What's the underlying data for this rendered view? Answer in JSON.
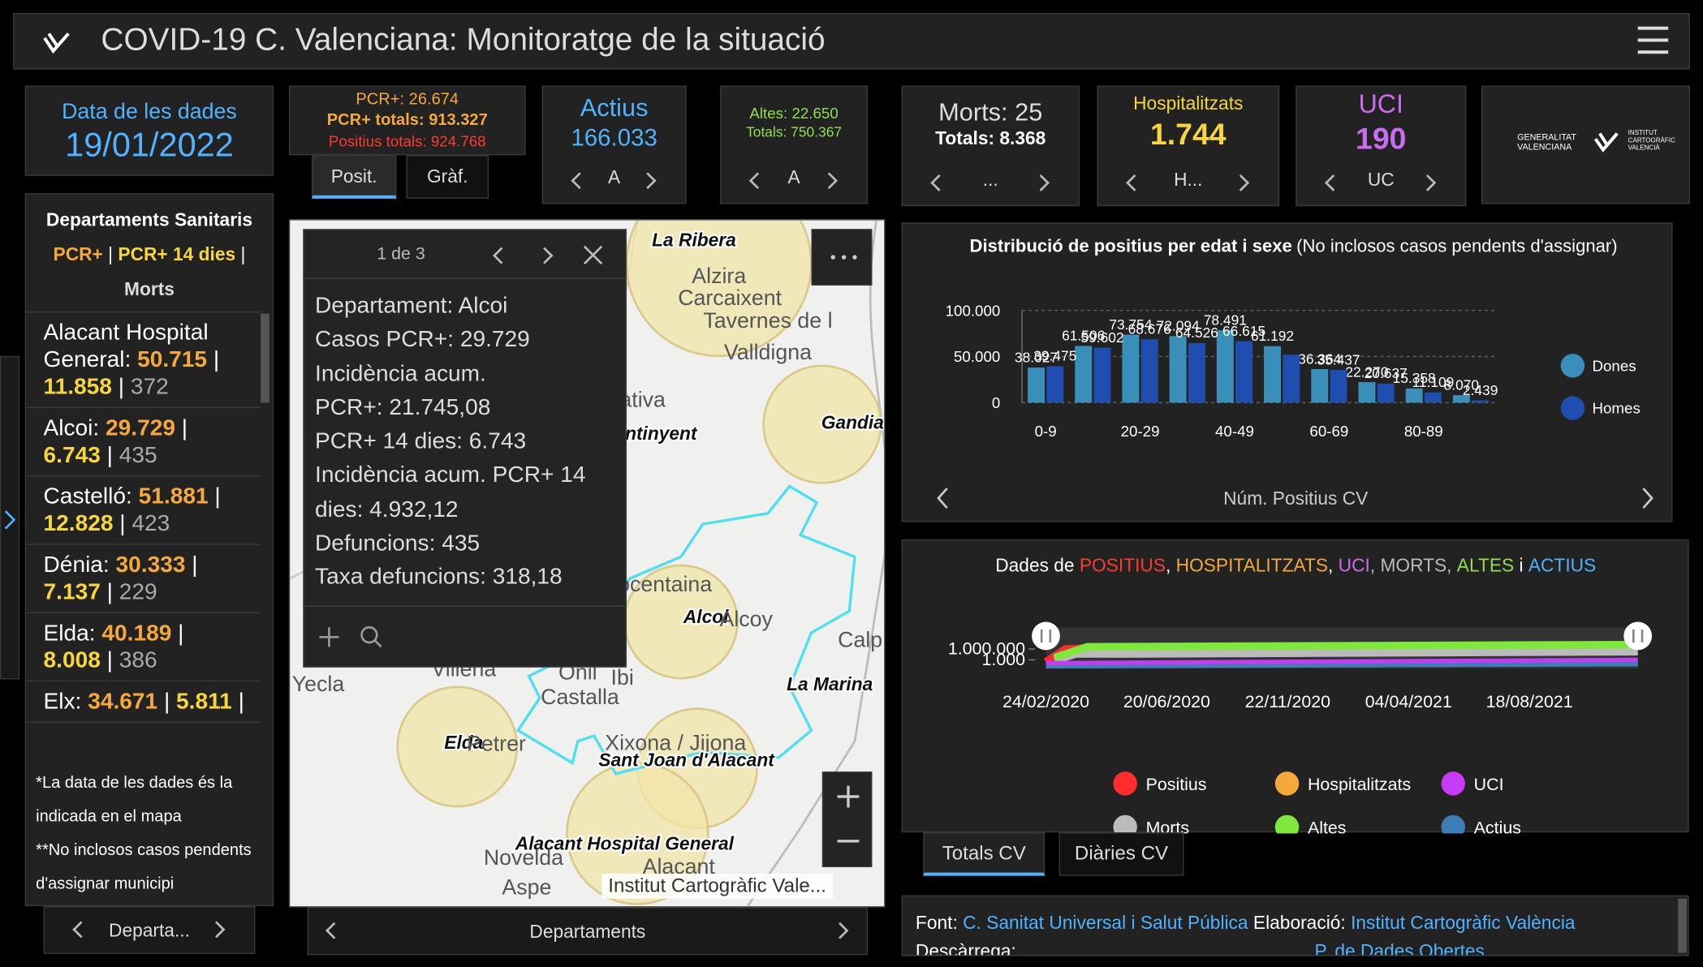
{
  "header": {
    "title": "COVID-19 C. Valenciana: Monitoratge de la situació"
  },
  "date_card": {
    "label": "Data de les dades",
    "value": "19/01/2022"
  },
  "pcr_card": {
    "lines": [
      "PCR+: 26.674",
      "PCR+ totals: 913.327",
      "Positius totals: 924.768"
    ],
    "tabs": [
      "Posit.",
      "Gràf."
    ]
  },
  "actius_card": {
    "title": "Actius",
    "value": "166.033",
    "nav": "A"
  },
  "altes_card": {
    "lines": [
      "Altes: 22.650",
      "Totals: 750.367"
    ],
    "nav": "A"
  },
  "morts_card": {
    "lines": [
      "Morts: 25",
      "Totals: 8.368"
    ],
    "nav": "..."
  },
  "hosp_card": {
    "title": "Hospitalitzats",
    "value": "1.744",
    "nav": "H..."
  },
  "uci_card": {
    "title": "UCI",
    "value": "190",
    "nav": "UC"
  },
  "logos": {
    "gva": [
      "GENERALITAT",
      "VALENCIANA"
    ],
    "icv": [
      "INSTITUT",
      "CARTOGRÀFIC",
      "VALENCIÀ"
    ]
  },
  "departments": {
    "heading": "Departaments Sanitaris",
    "legend": [
      "PCR+",
      "PCR+ 14 dies",
      "Morts"
    ],
    "items": [
      {
        "name": "Alacant Hospital General:",
        "pcr": "50.715",
        "pcr14": "11.858",
        "morts": "372"
      },
      {
        "name": "Alcoi:",
        "pcr": "29.729",
        "pcr14": "6.743",
        "morts": "435"
      },
      {
        "name": "Castelló:",
        "pcr": "51.881",
        "pcr14": "12.828",
        "morts": "423"
      },
      {
        "name": "Dénia:",
        "pcr": "30.333",
        "pcr14": "7.137",
        "morts": "229"
      },
      {
        "name": "Elda:",
        "pcr": "40.189",
        "pcr14": "8.008",
        "morts": "386"
      },
      {
        "name": "Elx:",
        "pcr": "34.671",
        "pcr14": "5.811"
      }
    ],
    "notes": [
      "*La data de les dades és la indicada en el mapa",
      "**No inclosos casos pendents d'assignar municipi"
    ],
    "nav": "Departa..."
  },
  "map": {
    "popup": {
      "pager": "1 de 3",
      "lines": [
        "Departament: Alcoi",
        "Casos PCR+: 29.729",
        "Incidència acum.",
        "PCR+: 21.745,08",
        "PCR+ 14 dies: 6.743",
        "Incidència acum. PCR+ 14",
        "dies: 4.932,12",
        "Defuncions: 435",
        "Taxa defuncions: 318,18"
      ]
    },
    "places": [
      "La Ribera",
      "Alzira",
      "Carcaixent",
      "Tavernes de l",
      "Valldigna",
      "Xàtiva",
      "Gandia",
      "Ontinyent",
      "Cocentaina",
      "Alcoi",
      "Alcoy",
      "Onil",
      "Ibi",
      "Castalla",
      "Villena",
      "Yecla",
      "Elda",
      "Petrer",
      "Xixona / Jijona",
      "Sant Joan d'Alacant",
      "La Marina",
      "Alacant Hospital General",
      "Novelda",
      "Aspe",
      "Alacant",
      "Calp"
    ],
    "attribution": "Institut Cartogràfic Vale...",
    "nav": "Departaments"
  },
  "age_chart": {
    "type": "bar",
    "title": "Distribució de positius per edat i sexe",
    "subtitle": "(No inclosos casos pendents d'assignar)",
    "categories": [
      "0-9",
      null,
      "20-29",
      null,
      "40-49",
      null,
      "60-69",
      null,
      "80-89",
      null
    ],
    "series": [
      {
        "name": "Dones",
        "color": "#3a8fba",
        "values": [
          38027,
          61506,
          73754,
          72094,
          78491,
          61192,
          36364,
          22270,
          15358,
          8070
        ],
        "value_labels": [
          "38.027",
          "61.506",
          "73.754",
          "72.094",
          "78.491",
          "61.192",
          "36.364",
          "22.270",
          "15.358",
          "8.070"
        ]
      },
      {
        "name": "Homes",
        "color": "#1f4db0",
        "values": [
          39475,
          59602,
          68676,
          64526,
          66615,
          52000,
          35437,
          20637,
          11109,
          2439
        ],
        "value_labels": [
          "39.475",
          "59.602",
          "68.676",
          "64.526",
          "66.615",
          null,
          "35.437",
          "20.637",
          "11.109",
          "2.439"
        ]
      }
    ],
    "ylim": [
      0,
      100000
    ],
    "yticks": [
      {
        "value": 0,
        "label": "0"
      },
      {
        "value": 50000,
        "label": "50.000"
      },
      {
        "value": 100000,
        "label": "100.000"
      }
    ],
    "grid": true,
    "nav": "Núm. Positius CV"
  },
  "timeline": {
    "type": "line",
    "title": [
      "Dades de ",
      "POSITIUS",
      ", ",
      "HOSPITALITZATS",
      ", ",
      "UCI",
      ", MORTS, ",
      "ALTES",
      " i ",
      "ACTIUS"
    ],
    "xticks": [
      "24/02/2020",
      "20/06/2020",
      "22/11/2020",
      "04/04/2021",
      "18/08/2021"
    ],
    "yticks": [
      {
        "value": 1000000,
        "label": "1.000.000"
      },
      {
        "value": 1000,
        "label": "1.000"
      }
    ],
    "log_scale": true,
    "legend": [
      {
        "name": "Positius",
        "color": "#ff2d2d"
      },
      {
        "name": "Hospitalitzats",
        "color": "#f5a93a"
      },
      {
        "name": "UCI",
        "color": "#c43cf5"
      },
      {
        "name": "Morts",
        "color": "#bbbbbb"
      },
      {
        "name": "Altes",
        "color": "#7ee83b"
      },
      {
        "name": "Actius",
        "color": "#3d7fb5"
      }
    ],
    "tabs": [
      "Totals CV",
      "Diàries CV"
    ]
  },
  "footer": [
    "Font:",
    "C. Sanitat Universal i Salut Pública",
    "Elaboració:",
    "Institut Cartogràfic València",
    "Descàrrega:",
    "P. de Dades Obertes"
  ]
}
